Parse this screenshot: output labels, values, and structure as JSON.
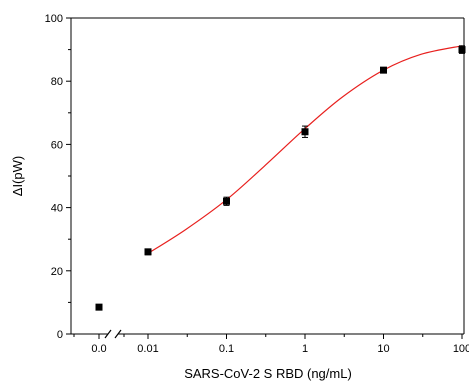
{
  "chart_data": {
    "type": "scatter",
    "xlabel": "SARS-CoV-2 S RBD (ng/mL)",
    "ylabel": "ΔI(pW)",
    "xscale": "log with axis break",
    "ylim": [
      0,
      100
    ],
    "y_ticks": [
      0,
      20,
      40,
      60,
      80,
      100
    ],
    "x_ticks": [
      {
        "value": 0.0,
        "label": "0.0"
      },
      {
        "value": 0.01,
        "label": "0.01"
      },
      {
        "value": 0.1,
        "label": "0.1"
      },
      {
        "value": 1,
        "label": "1"
      },
      {
        "value": 10,
        "label": "10"
      },
      {
        "value": 100,
        "label": "100"
      }
    ],
    "grid": false,
    "legend": "none",
    "series": [
      {
        "marker": "square",
        "color": "#000000",
        "points": [
          {
            "x": 0.0,
            "y": 8.5,
            "err": 0.8
          },
          {
            "x": 0.01,
            "y": 26,
            "err": 0.9
          },
          {
            "x": 0.1,
            "y": 42,
            "err": 1.3
          },
          {
            "x": 1,
            "y": 64,
            "err": 1.8
          },
          {
            "x": 10,
            "y": 83.5,
            "err": 0.8
          },
          {
            "x": 100,
            "y": 90,
            "err": 1.2
          }
        ]
      }
    ],
    "fit": {
      "color": "#e8201e",
      "x_range": [
        0.01,
        100
      ],
      "points": [
        {
          "x": 0.01,
          "y": 25.5
        },
        {
          "x": 0.03,
          "y": 33
        },
        {
          "x": 0.1,
          "y": 42.5
        },
        {
          "x": 0.3,
          "y": 53
        },
        {
          "x": 1,
          "y": 65
        },
        {
          "x": 3,
          "y": 75
        },
        {
          "x": 10,
          "y": 83.5
        },
        {
          "x": 30,
          "y": 88.5
        },
        {
          "x": 100,
          "y": 91.2
        }
      ]
    }
  }
}
